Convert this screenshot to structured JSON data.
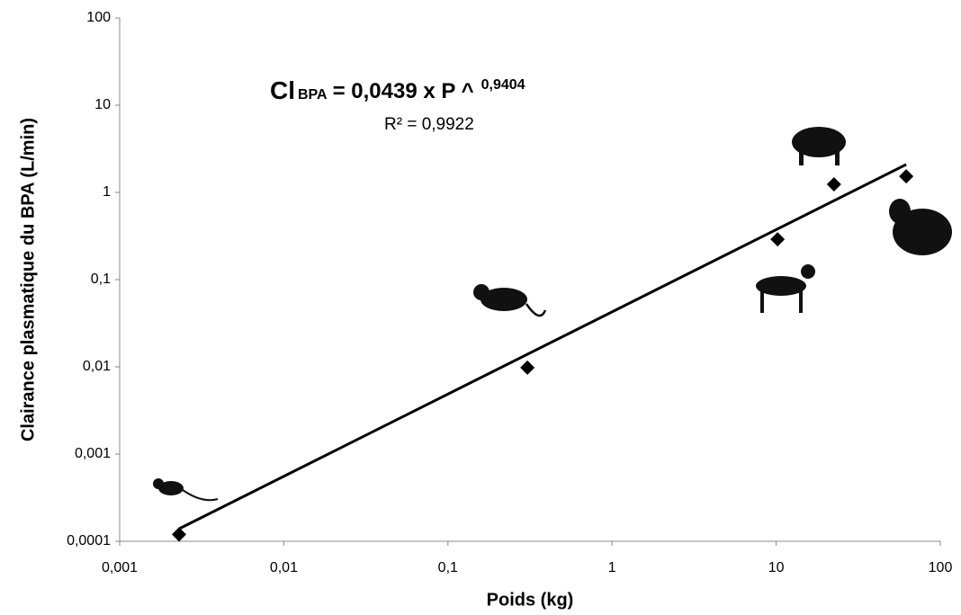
{
  "chart_data": {
    "type": "scatter",
    "x_label": "Poids (kg)",
    "y_label": "Clairance plasmatique du BPA (L/min)",
    "equation": {
      "main": "Cl",
      "sub": "BPA",
      "rest": "= 0,0439 x P ^",
      "sup": "0,9404"
    },
    "r_squared": "R² = 0,9922",
    "log_x": true,
    "log_y": true,
    "grid": false,
    "color": "#000000",
    "x": [
      0.0023,
      0.305,
      10.2,
      22.5,
      62
    ],
    "values": [
      0.00012,
      0.0098,
      0.29,
      1.24,
      1.53
    ],
    "trendline": {
      "x": [
        0.0023,
        62
      ],
      "values": [
        0.000139,
        2.09
      ],
      "color": "#000000"
    },
    "xlim": [
      0.001,
      100
    ],
    "xticks": [
      {
        "value": 0.001,
        "label": "0,001"
      },
      {
        "value": 0.01,
        "label": "0,01"
      },
      {
        "value": 0.1,
        "label": "0,1"
      },
      1,
      10,
      100
    ],
    "ylim": [
      0.0001,
      100
    ],
    "yticks": [
      {
        "value": 0.0001,
        "label": "0,0001"
      },
      {
        "value": 0.001,
        "label": "0,001"
      },
      {
        "value": 0.01,
        "label": "0,01"
      },
      {
        "value": 0.1,
        "label": "0,1"
      },
      1,
      10,
      100
    ]
  }
}
